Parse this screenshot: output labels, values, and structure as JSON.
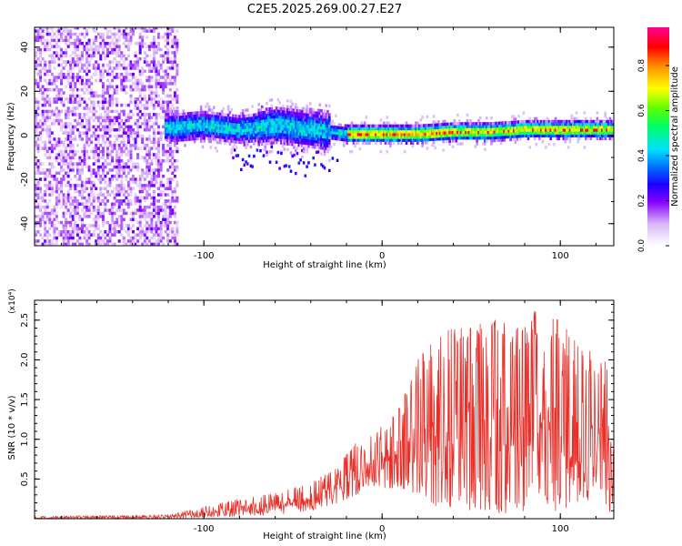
{
  "title": "C2E5.2025.269.00.27.E27",
  "colors": {
    "snr_line": "#e8302a",
    "axis": "#000000"
  },
  "chart_data": [
    {
      "type": "heatmap",
      "name": "spectrogram",
      "xlabel": "Height of straight line (km)",
      "ylabel": "Frequency (Hz)",
      "xlim": [
        -195,
        130
      ],
      "ylim": [
        -50,
        49
      ],
      "xticks": [
        -100,
        0,
        100
      ],
      "xtick_labels": [
        "-100",
        "0",
        "100"
      ],
      "yticks": [
        -40,
        -20,
        0,
        20,
        40
      ],
      "ytick_labels": [
        "-40",
        "-20",
        "0",
        "20",
        "40"
      ],
      "colorbar": {
        "label": "Normalized spectral amplitude",
        "range": [
          0,
          0.97
        ],
        "ticks": [
          0.0,
          0.2,
          0.4,
          0.6,
          0.8
        ],
        "tick_labels": [
          "0.0",
          "0.2",
          "0.4",
          "0.6",
          "0.8"
        ]
      },
      "ridge": {
        "description": "Dominant frequency band",
        "points": [
          {
            "x": -115,
            "y": 3
          },
          {
            "x": -100,
            "y": 4
          },
          {
            "x": -80,
            "y": 2
          },
          {
            "x": -60,
            "y": 4
          },
          {
            "x": -40,
            "y": 2
          },
          {
            "x": -20,
            "y": 0
          },
          {
            "x": 0,
            "y": 0
          },
          {
            "x": 20,
            "y": 0
          },
          {
            "x": 40,
            "y": 1
          },
          {
            "x": 60,
            "y": 1
          },
          {
            "x": 80,
            "y": 2
          },
          {
            "x": 100,
            "y": 2
          },
          {
            "x": 130,
            "y": 2
          }
        ],
        "peak_amplitude": 0.95
      },
      "noise_region": {
        "x_from": -195,
        "x_to": -115,
        "amplitude": 0.1
      }
    },
    {
      "type": "line",
      "name": "snr",
      "xlabel": "Height of straight line (km)",
      "ylabel": "SNR (10 * v/v)",
      "y_multiplier": "(x10⁴)",
      "xlim": [
        -195,
        130
      ],
      "ylim": [
        0,
        2.75
      ],
      "xticks": [
        -100,
        0,
        100
      ],
      "xtick_labels": [
        "-100",
        "0",
        "100"
      ],
      "yticks": [
        0.5,
        1.0,
        1.5,
        2.0,
        2.5
      ],
      "ytick_labels": [
        "0.5",
        "1.0",
        "1.5",
        "2.0",
        "2.5"
      ],
      "envelope": {
        "x": [
          -195,
          -150,
          -120,
          -100,
          -80,
          -60,
          -40,
          -25,
          -15,
          -5,
          10,
          20,
          30,
          40,
          50,
          60,
          70,
          80,
          90,
          100,
          110,
          120,
          125,
          130
        ],
        "lower": [
          0.0,
          0.0,
          0.0,
          0.02,
          0.03,
          0.05,
          0.1,
          0.2,
          0.3,
          0.35,
          0.4,
          0.3,
          0.15,
          0.1,
          0.1,
          0.1,
          0.05,
          0.1,
          0.1,
          0.1,
          0.15,
          0.3,
          0.2,
          0.0
        ],
        "upper": [
          0.03,
          0.04,
          0.05,
          0.15,
          0.25,
          0.32,
          0.45,
          0.65,
          1.0,
          1.05,
          1.4,
          2.0,
          2.3,
          2.4,
          2.4,
          2.5,
          2.5,
          2.5,
          2.72,
          2.5,
          2.2,
          2.1,
          2.0,
          1.85
        ]
      }
    }
  ]
}
